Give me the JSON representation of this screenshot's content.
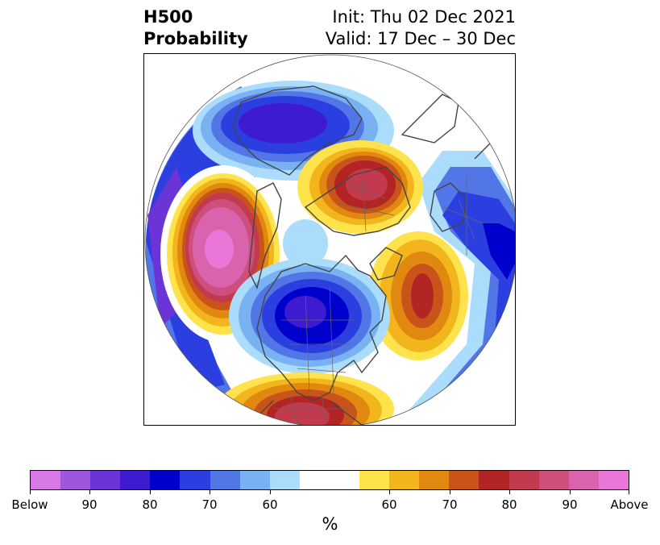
{
  "header": {
    "variable": "H500",
    "product": "Probability",
    "init": "Init: Thu 02 Dec 2021",
    "valid": "Valid: 17 Dec – 30 Dec"
  },
  "colorbar": {
    "colors": [
      "#d877e6",
      "#9f56de",
      "#6a34d6",
      "#3e1bd0",
      "#0000cd",
      "#2b3fe0",
      "#5276e6",
      "#78b2f2",
      "#abdcfb",
      "#ffffff",
      "#ffffff",
      "#ffe34d",
      "#f2b61c",
      "#e0880f",
      "#c9541a",
      "#b32424",
      "#c23a4d",
      "#cf4f7c",
      "#d963ad",
      "#e877d8"
    ],
    "tick_labels": [
      "Below",
      "90",
      "80",
      "70",
      "60",
      "60",
      "70",
      "80",
      "90",
      "Above"
    ],
    "unit": "%"
  },
  "map": {
    "anomalies": [
      {
        "name": "west-pacific-above",
        "level": "Above"
      },
      {
        "name": "siberia-above",
        "level": "80"
      },
      {
        "name": "atlantic-above",
        "level": "70"
      },
      {
        "name": "southern-us-above",
        "level": "80"
      },
      {
        "name": "canada-below",
        "level": "80"
      },
      {
        "name": "asia-below",
        "level": "80"
      },
      {
        "name": "europe-below",
        "level": "70"
      }
    ]
  }
}
